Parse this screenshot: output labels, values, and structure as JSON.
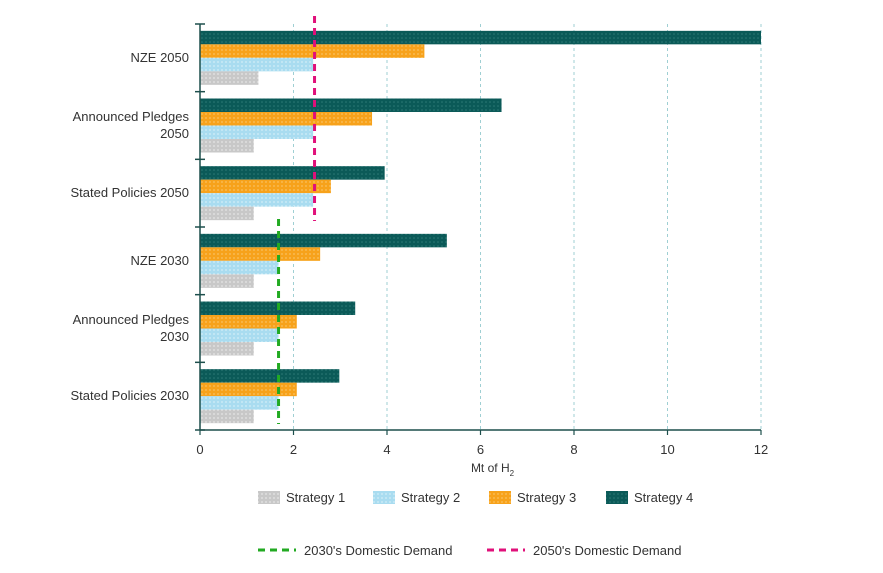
{
  "chart_data": {
    "type": "bar",
    "orientation": "horizontal",
    "categories": [
      [
        "NZE 2050"
      ],
      [
        "Announced Pledges",
        "2050"
      ],
      [
        "Stated Policies 2050"
      ],
      [
        "NZE 2030"
      ],
      [
        "Announced Pledges",
        "2030"
      ],
      [
        "Stated Policies 2030"
      ]
    ],
    "series": [
      {
        "name": "Strategy 4",
        "color": "#0b5a58",
        "values": [
          12.0,
          6.45,
          3.95,
          5.28,
          3.32,
          2.98
        ]
      },
      {
        "name": "Strategy 3",
        "color": "#f7a21b",
        "values": [
          4.8,
          3.68,
          2.8,
          2.57,
          2.07,
          2.07
        ]
      },
      {
        "name": "Strategy 2",
        "color": "#a9dcf0",
        "values": [
          2.42,
          2.42,
          2.42,
          1.68,
          1.68,
          1.68
        ]
      },
      {
        "name": "Strategy 1",
        "color": "#c8c8c8",
        "values": [
          1.25,
          1.15,
          1.15,
          1.15,
          1.15,
          1.15
        ]
      }
    ],
    "reference_lines": [
      {
        "name": "2030's Domestic Demand",
        "value": 1.68,
        "color": "#22aa22",
        "applies_to": [
          3,
          4,
          5
        ]
      },
      {
        "name": "2050's Domestic Demand",
        "value": 2.45,
        "color": "#e0107a",
        "applies_to": [
          0,
          1,
          2
        ]
      }
    ],
    "xlabel_main": "Mt of H",
    "xlabel_sub": "2",
    "xlim": [
      0,
      12
    ],
    "xticks": [
      0,
      2,
      4,
      6,
      8,
      10,
      12
    ],
    "legend_order": [
      "Strategy 1",
      "Strategy 2",
      "Strategy 3",
      "Strategy 4"
    ],
    "legend_lines_order": [
      "2030's Domestic Demand",
      "2050's Domestic Demand"
    ],
    "grid": "vertical dashed"
  }
}
